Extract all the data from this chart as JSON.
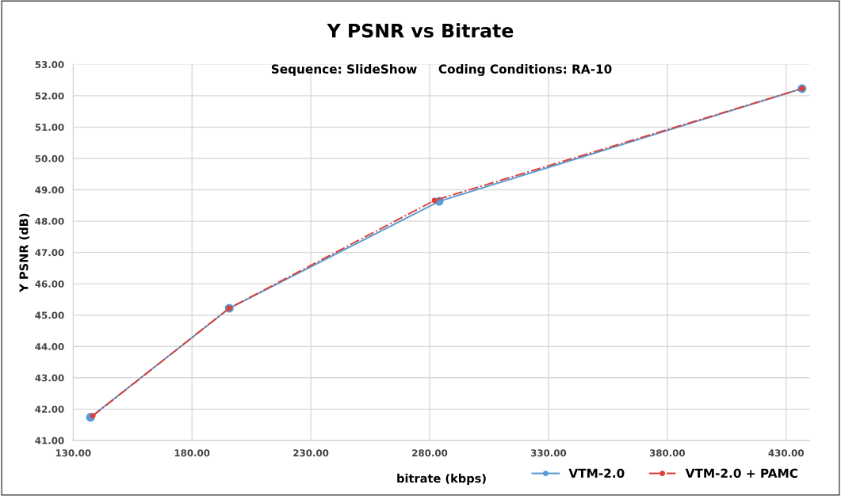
{
  "chart_data": {
    "type": "line",
    "title": "Y PSNR vs Bitrate",
    "subtitle": "Sequence: SlideShow     Coding Conditions: RA-10",
    "xlabel": "bitrate (kbps)",
    "ylabel": "Y PSNR (dB)",
    "series": [
      {
        "name": "VTM-2.0",
        "color": "#5b9bd5",
        "line_style": "solid",
        "x": [
          137.3,
          195.7,
          284.0,
          436.7
        ],
        "values": [
          41.74,
          45.22,
          48.63,
          52.23
        ]
      },
      {
        "name": "VTM-2.0 + PAMC",
        "color": "#d9413a",
        "line_style": "dashdot",
        "x": [
          138.3,
          195.7,
          282.0,
          436.7
        ],
        "values": [
          41.79,
          45.22,
          48.66,
          52.23
        ]
      }
    ],
    "marker": "circle",
    "grid": true,
    "legend": "bottom right",
    "xlim": [
      130,
      440
    ],
    "xticks": [
      {
        "value": 130,
        "label": "130.00"
      },
      {
        "value": 180,
        "label": "180.00"
      },
      {
        "value": 230,
        "label": "230.00"
      },
      {
        "value": 280,
        "label": "280.00"
      },
      {
        "value": 330,
        "label": "330.00"
      },
      {
        "value": 380,
        "label": "380.00"
      },
      {
        "value": 430,
        "label": "430.00"
      }
    ],
    "ylim": [
      41,
      53
    ],
    "yticks": [
      {
        "value": 41,
        "label": "41.00"
      },
      {
        "value": 42,
        "label": "42.00"
      },
      {
        "value": 43,
        "label": "43.00"
      },
      {
        "value": 44,
        "label": "44.00"
      },
      {
        "value": 45,
        "label": "45.00"
      },
      {
        "value": 46,
        "label": "46.00"
      },
      {
        "value": 47,
        "label": "47.00"
      },
      {
        "value": 48,
        "label": "48.00"
      },
      {
        "value": 49,
        "label": "49.00"
      },
      {
        "value": 50,
        "label": "50.00"
      },
      {
        "value": 51,
        "label": "51.00"
      },
      {
        "value": 52,
        "label": "52.00"
      },
      {
        "value": 53,
        "label": "53.00"
      }
    ]
  }
}
